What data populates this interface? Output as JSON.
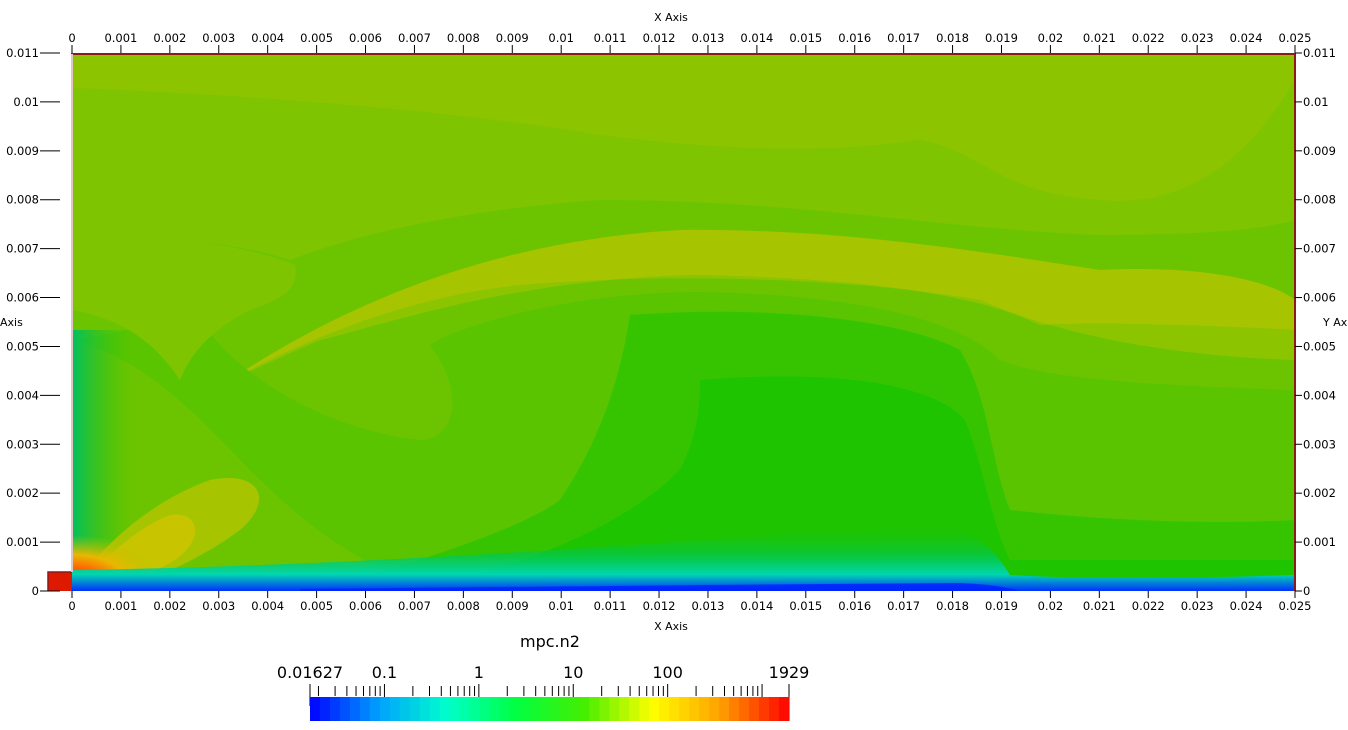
{
  "chart_data": {
    "type": "heatmap",
    "title": "",
    "xlabel": "X Axis",
    "ylabel": "Y Axis",
    "xlabel_top": "X Axis",
    "ylabel_left": "Axis",
    "ylabel_right": "Y Ax",
    "xlim": [
      0,
      0.025
    ],
    "ylim": [
      0,
      0.011
    ],
    "x_ticks": [
      "0",
      "0.001",
      "0.002",
      "0.003",
      "0.004",
      "0.005",
      "0.006",
      "0.007",
      "0.008",
      "0.009",
      "0.01",
      "0.011",
      "0.012",
      "0.013",
      "0.014",
      "0.015",
      "0.016",
      "0.017",
      "0.018",
      "0.019",
      "0.02",
      "0.021",
      "0.022",
      "0.023",
      "0.024",
      "0.025"
    ],
    "y_ticks": [
      "0",
      "0.001",
      "0.002",
      "0.003",
      "0.004",
      "0.005",
      "0.006",
      "0.007",
      "0.008",
      "0.009",
      "0.01",
      "0.011"
    ],
    "colorbar": {
      "title": "mpc.n2",
      "scale": "log",
      "min": 0.01627,
      "max": 1929,
      "labels": [
        "0.01627",
        "0.1",
        "1",
        "10",
        "100",
        "1929"
      ],
      "colormap": [
        "#0000ff",
        "#00a0ff",
        "#00ffcc",
        "#00ff44",
        "#44ee00",
        "#ffff00",
        "#ffa000",
        "#ff0000"
      ]
    },
    "field_colors": {
      "background": "#6cc400",
      "upper_band": "#8dc400",
      "light_arc": "#a6c400",
      "mid_green": "#45c400",
      "deep_green": "#1cc400",
      "teal": "#00d08a",
      "blue_edge": "#0022ff",
      "hot_spot": "#ff2200",
      "warm": "#e0c000",
      "domain_edge": "#8b1a1a"
    }
  }
}
